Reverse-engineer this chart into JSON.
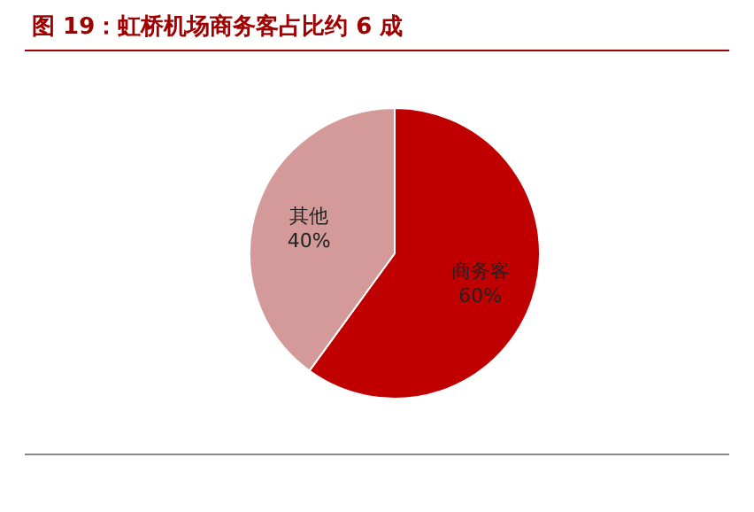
{
  "chart_data": {
    "type": "pie",
    "title": "图 19：虹桥机场商务客占比约 6 成",
    "categories": [
      "商务客",
      "其他"
    ],
    "values": [
      60,
      40
    ],
    "colors": [
      "#c00000",
      "#d49a9a"
    ],
    "value_labels": [
      "60%",
      "40%"
    ]
  }
}
